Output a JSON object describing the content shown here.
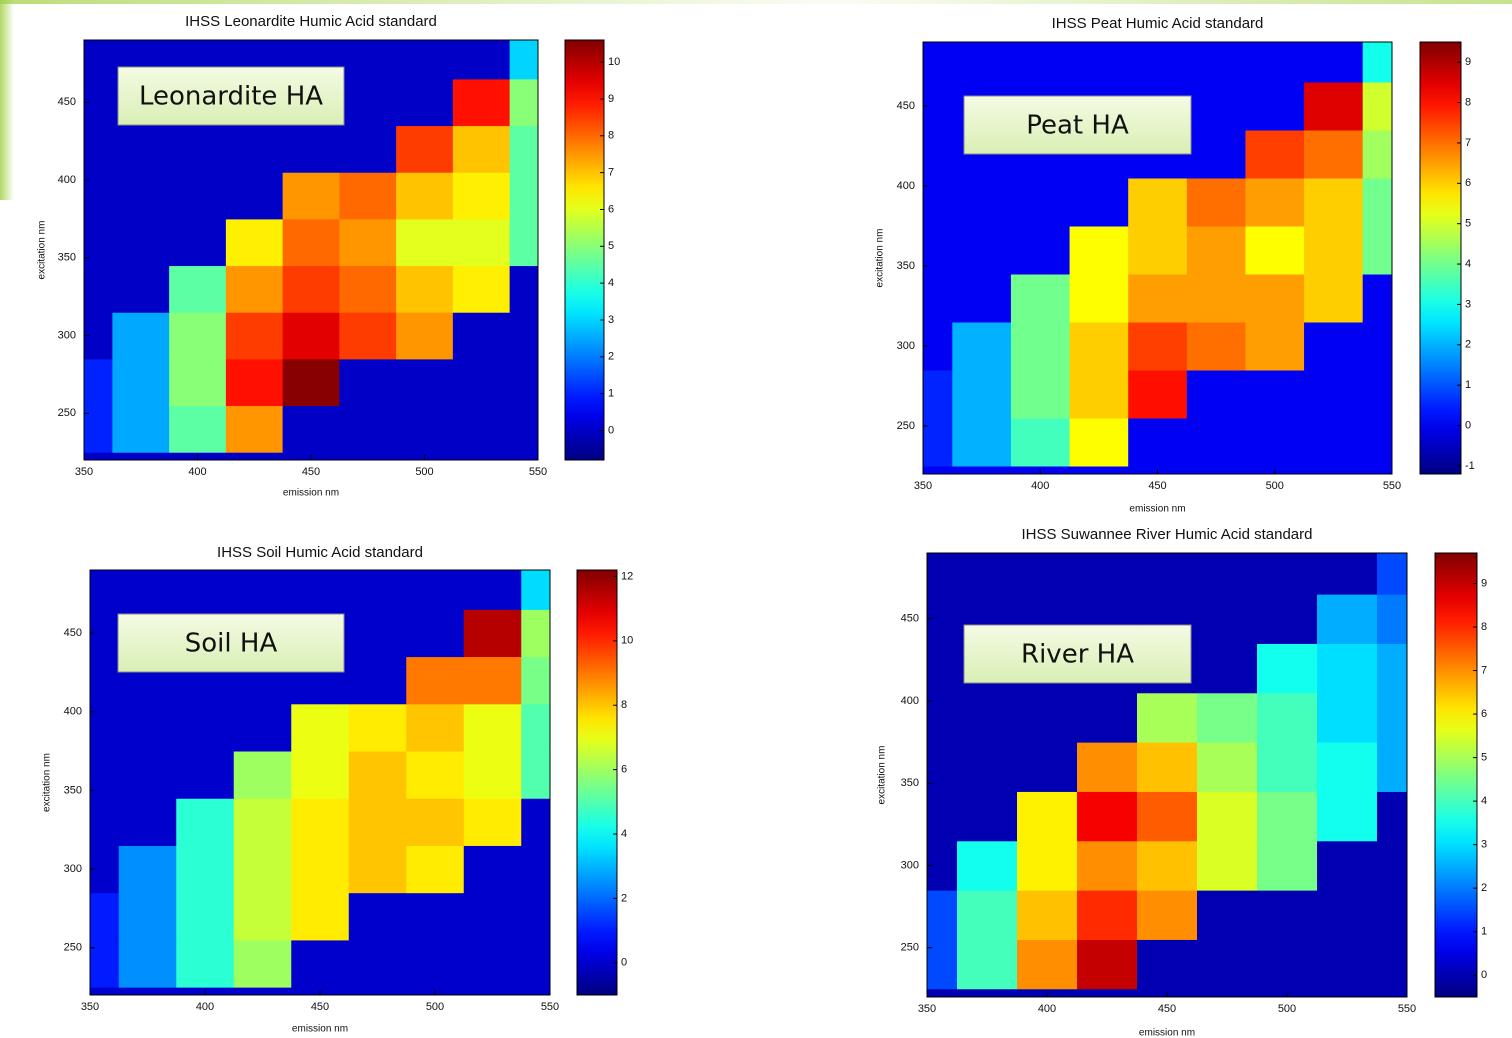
{
  "chart_data": [
    {
      "type": "heatmap",
      "title": "IHSS Leonardite Humic Acid standard",
      "x_label": "emission nm",
      "y_label": "excitation nm",
      "annotation": "Leonardite HA",
      "colormap": "jet",
      "x": [
        350,
        375,
        400,
        425,
        450,
        475,
        500,
        525,
        550
      ],
      "y": [
        240,
        270,
        300,
        330,
        360,
        390,
        420,
        450,
        480
      ],
      "z": [
        [
          1,
          2.5,
          4.5,
          7.5,
          0,
          0,
          0,
          0,
          0
        ],
        [
          1,
          2.5,
          5,
          9,
          10.5,
          0,
          0,
          0,
          0
        ],
        [
          0,
          2.5,
          5,
          8.5,
          9.5,
          8.5,
          7.5,
          0,
          0
        ],
        [
          0,
          0,
          4.5,
          7.5,
          8.5,
          8,
          7,
          6.5,
          0
        ],
        [
          0,
          0,
          0,
          6.5,
          8,
          7.5,
          6,
          6,
          4.5
        ],
        [
          0,
          0,
          0,
          0,
          7.5,
          8,
          7,
          6.5,
          4.5
        ],
        [
          0,
          0,
          0,
          0,
          0,
          0,
          8.5,
          7,
          4.5
        ],
        [
          0,
          0,
          0,
          0,
          0,
          0,
          0,
          9,
          5
        ],
        [
          0,
          0,
          0,
          0,
          0,
          0,
          0,
          0,
          3
        ]
      ],
      "xlim": [
        350,
        550
      ],
      "ylim": [
        220,
        490
      ],
      "xticks": [
        350,
        400,
        450,
        500,
        550
      ],
      "yticks": [
        250,
        300,
        350,
        400,
        450
      ],
      "zlim": [
        -0.8,
        10.6
      ],
      "colorbar_ticks": [
        0,
        1,
        2,
        3,
        4,
        5,
        6,
        7,
        8,
        9,
        10
      ]
    },
    {
      "type": "heatmap",
      "title": "IHSS Peat Humic Acid standard",
      "x_label": "emission nm",
      "y_label": "excitation nm",
      "annotation": "Peat HA",
      "colormap": "jet",
      "x": [
        350,
        375,
        400,
        425,
        450,
        475,
        500,
        525,
        550
      ],
      "y": [
        240,
        270,
        300,
        330,
        360,
        390,
        420,
        450,
        480
      ],
      "z": [
        [
          0.5,
          2,
          3.5,
          5.5,
          0,
          0,
          0,
          0,
          0
        ],
        [
          0.5,
          2,
          4,
          6,
          8,
          0,
          0,
          0,
          0
        ],
        [
          0,
          2,
          4,
          6,
          7.5,
          7,
          6.5,
          0,
          0
        ],
        [
          0,
          0,
          4,
          5.5,
          6.5,
          6.5,
          6.5,
          6,
          0
        ],
        [
          0,
          0,
          0,
          5.5,
          6,
          6.5,
          5.5,
          6,
          4
        ],
        [
          0,
          0,
          0,
          0,
          6,
          7,
          6.5,
          6,
          4
        ],
        [
          0,
          0,
          0,
          0,
          0,
          0,
          7.5,
          7,
          4.5
        ],
        [
          0,
          0,
          0,
          0,
          0,
          0,
          0,
          8.5,
          5
        ],
        [
          0,
          0,
          0,
          0,
          0,
          0,
          0,
          0,
          3
        ]
      ],
      "xlim": [
        350,
        550
      ],
      "ylim": [
        220,
        490
      ],
      "xticks": [
        350,
        400,
        450,
        500,
        550
      ],
      "yticks": [
        250,
        300,
        350,
        400,
        450
      ],
      "zlim": [
        -1.2,
        9.5
      ],
      "colorbar_ticks": [
        -1,
        0,
        1,
        2,
        3,
        4,
        5,
        6,
        7,
        8,
        9
      ]
    },
    {
      "type": "heatmap",
      "title": "IHSS Soil Humic Acid standard",
      "x_label": "emission nm",
      "y_label": "excitation nm",
      "annotation": "Soil HA",
      "colormap": "jet",
      "x": [
        350,
        375,
        400,
        425,
        450,
        475,
        500,
        525,
        550
      ],
      "y": [
        240,
        270,
        300,
        330,
        360,
        390,
        420,
        450,
        480
      ],
      "z": [
        [
          1,
          2.5,
          4.5,
          6,
          0,
          0,
          0,
          0,
          0
        ],
        [
          1,
          2.5,
          4.5,
          6.5,
          7.5,
          0,
          0,
          0,
          0
        ],
        [
          0,
          2.5,
          4.5,
          6.5,
          7.5,
          8,
          7.5,
          0,
          0
        ],
        [
          0,
          0,
          4.5,
          6.5,
          7.5,
          8,
          8,
          7.5,
          0
        ],
        [
          0,
          0,
          0,
          6,
          7,
          8,
          7.5,
          7,
          5
        ],
        [
          0,
          0,
          0,
          0,
          7,
          7.5,
          8,
          7,
          5
        ],
        [
          0,
          0,
          0,
          0,
          0,
          0,
          9,
          9,
          5.5
        ],
        [
          0,
          0,
          0,
          0,
          0,
          0,
          0,
          11.5,
          6
        ],
        [
          0,
          0,
          0,
          0,
          0,
          0,
          0,
          0,
          3.5
        ]
      ],
      "xlim": [
        350,
        550
      ],
      "ylim": [
        220,
        490
      ],
      "xticks": [
        350,
        400,
        450,
        500,
        550
      ],
      "yticks": [
        250,
        300,
        350,
        400,
        450
      ],
      "zlim": [
        -1,
        12.2
      ],
      "colorbar_ticks": [
        0,
        2,
        4,
        6,
        8,
        10,
        12
      ]
    },
    {
      "type": "heatmap",
      "title": "IHSS Suwannee River Humic Acid standard",
      "x_label": "emission nm",
      "y_label": "excitation nm",
      "annotation": "River HA",
      "colormap": "jet",
      "x": [
        350,
        375,
        400,
        425,
        450,
        475,
        500,
        525,
        550
      ],
      "y": [
        240,
        270,
        300,
        330,
        360,
        390,
        420,
        450,
        480
      ],
      "z": [
        [
          1.5,
          4,
          7,
          9,
          0,
          0,
          0,
          0,
          0
        ],
        [
          1.5,
          4,
          6.5,
          8,
          7,
          0,
          0,
          0,
          0
        ],
        [
          0,
          3.5,
          6,
          7,
          6.5,
          5.5,
          4.5,
          0,
          0
        ],
        [
          0,
          0,
          6,
          8.5,
          7.5,
          5.5,
          4.5,
          3.5,
          0
        ],
        [
          0,
          0,
          0,
          7,
          6.5,
          5,
          4,
          3.5,
          2.5
        ],
        [
          0,
          0,
          0,
          0,
          5,
          4.5,
          4,
          3,
          2.5
        ],
        [
          0,
          0,
          0,
          0,
          0,
          0,
          3.5,
          3,
          2.5
        ],
        [
          0,
          0,
          0,
          0,
          0,
          0,
          0,
          2.5,
          2
        ],
        [
          0,
          0,
          0,
          0,
          0,
          0,
          0,
          0,
          1.5
        ]
      ],
      "xlim": [
        350,
        550
      ],
      "ylim": [
        220,
        490
      ],
      "xticks": [
        350,
        400,
        450,
        500,
        550
      ],
      "yticks": [
        250,
        300,
        350,
        400,
        450
      ],
      "zlim": [
        -0.5,
        9.7
      ],
      "colorbar_ticks": [
        0,
        1,
        2,
        3,
        4,
        5,
        6,
        7,
        8,
        9
      ]
    }
  ]
}
